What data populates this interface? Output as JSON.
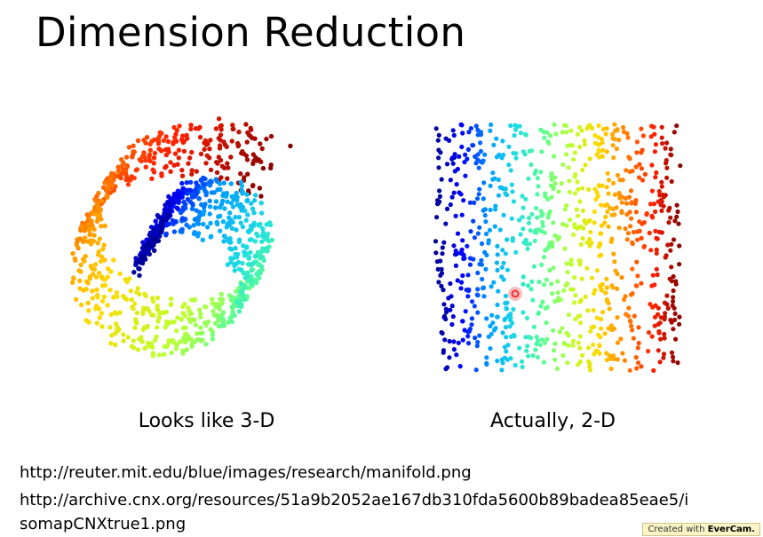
{
  "slide": {
    "title": "Dimension Reduction"
  },
  "figures": {
    "left_caption": "Looks like 3-D",
    "right_caption": "Actually, 2-D"
  },
  "references": {
    "url1": "http://reuter.mit.edu/blue/images/research/manifold.png",
    "url2_line1": "http://archive.cnx.org/resources/51a9b2052ae167db310fda5600b89badea85eae5/i",
    "url2_line2": "somapCNXtrue1.png"
  },
  "watermark": {
    "prefix": "Created with",
    "brand": "EverCam."
  },
  "colors": {
    "colormap": [
      "#00008f",
      "#0000ff",
      "#00a0ff",
      "#20e0e0",
      "#60ff90",
      "#c0ff30",
      "#ffd800",
      "#ff8000",
      "#ff2000",
      "#800000"
    ],
    "marker": "#ff3030"
  }
}
